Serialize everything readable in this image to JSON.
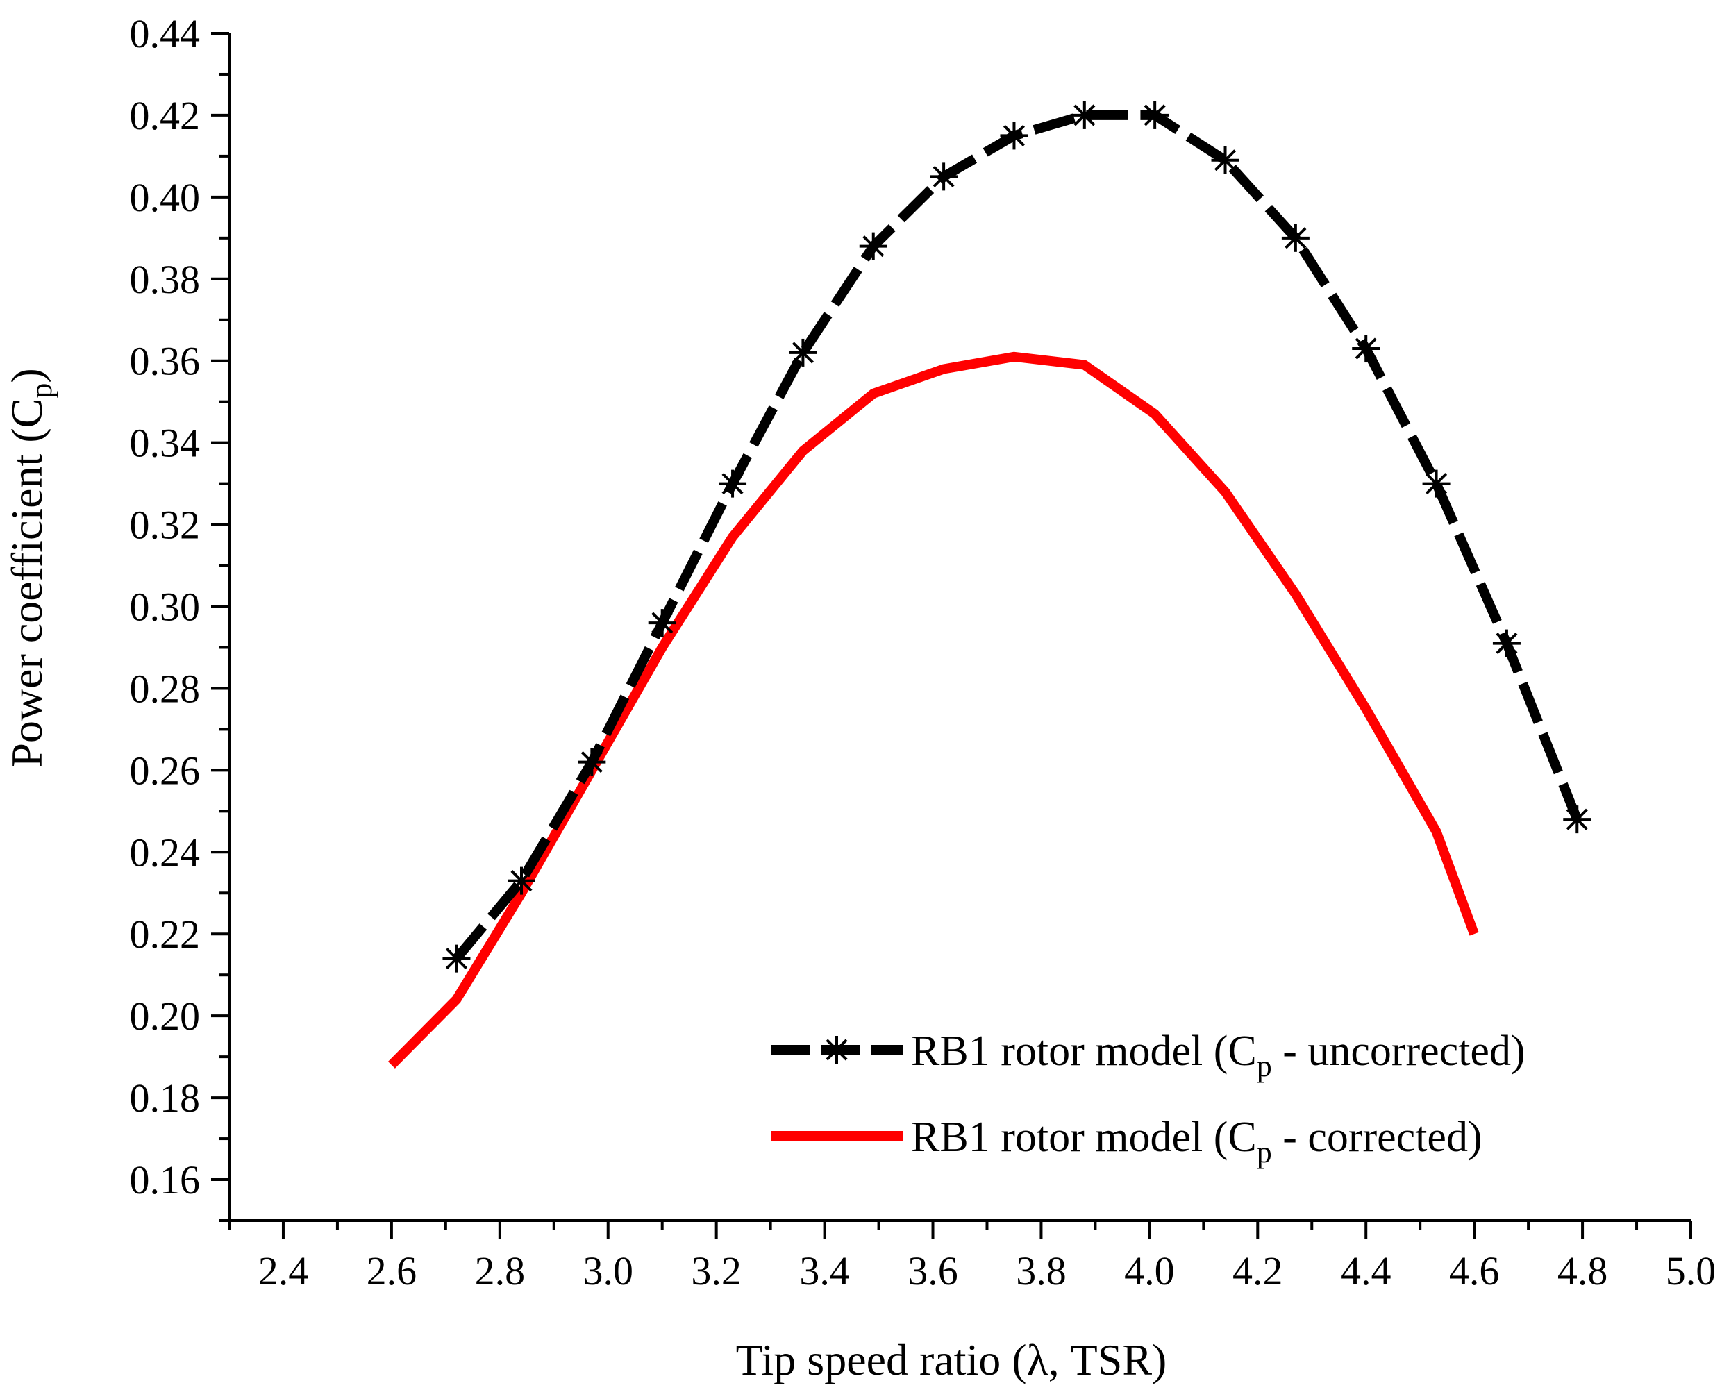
{
  "chart_data": {
    "type": "line",
    "title": "",
    "xlabel": "Tip speed ratio (λ, TSR)",
    "ylabel_main": "Power coefficient (C",
    "ylabel_sub": "p",
    "ylabel_close": ")",
    "xlim": [
      2.3,
      5.0
    ],
    "ylim": [
      0.15,
      0.44
    ],
    "xticks": [
      "2.4",
      "2.6",
      "2.8",
      "3.0",
      "3.2",
      "3.4",
      "3.6",
      "3.8",
      "4.0",
      "4.2",
      "4.4",
      "4.6",
      "4.8",
      "5.0"
    ],
    "yticks": [
      "0.16",
      "0.18",
      "0.20",
      "0.22",
      "0.24",
      "0.26",
      "0.28",
      "0.30",
      "0.32",
      "0.34",
      "0.36",
      "0.38",
      "0.40",
      "0.42",
      "0.44"
    ],
    "legend_position": "bottom-right",
    "series": [
      {
        "name": "RB1 rotor model (Cp - uncorrected)",
        "legend_main": "RB1 rotor model (C",
        "legend_sub": "p",
        "legend_tail": " - uncorrected)",
        "color": "#000000",
        "style": "dashed",
        "marker": "asterisk",
        "x": [
          2.72,
          2.84,
          2.97,
          3.1,
          3.23,
          3.36,
          3.49,
          3.62,
          3.75,
          3.88,
          4.01,
          4.14,
          4.27,
          4.4,
          4.53,
          4.66,
          4.79
        ],
        "y": [
          0.214,
          0.233,
          0.262,
          0.296,
          0.33,
          0.362,
          0.388,
          0.405,
          0.415,
          0.42,
          0.42,
          0.409,
          0.39,
          0.363,
          0.33,
          0.291,
          0.248
        ]
      },
      {
        "name": "RB1 rotor model (Cp - corrected)",
        "legend_main": "RB1 rotor model (C",
        "legend_sub": "p",
        "legend_tail": " - corrected)",
        "color": "#ff0000",
        "style": "solid",
        "marker": "none",
        "x": [
          2.6,
          2.72,
          2.84,
          2.97,
          3.1,
          3.23,
          3.36,
          3.49,
          3.62,
          3.75,
          3.88,
          4.01,
          4.14,
          4.27,
          4.4,
          4.53,
          4.6
        ],
        "y": [
          0.188,
          0.204,
          0.23,
          0.26,
          0.29,
          0.317,
          0.338,
          0.352,
          0.358,
          0.361,
          0.359,
          0.347,
          0.328,
          0.303,
          0.275,
          0.245,
          0.22
        ]
      }
    ]
  }
}
